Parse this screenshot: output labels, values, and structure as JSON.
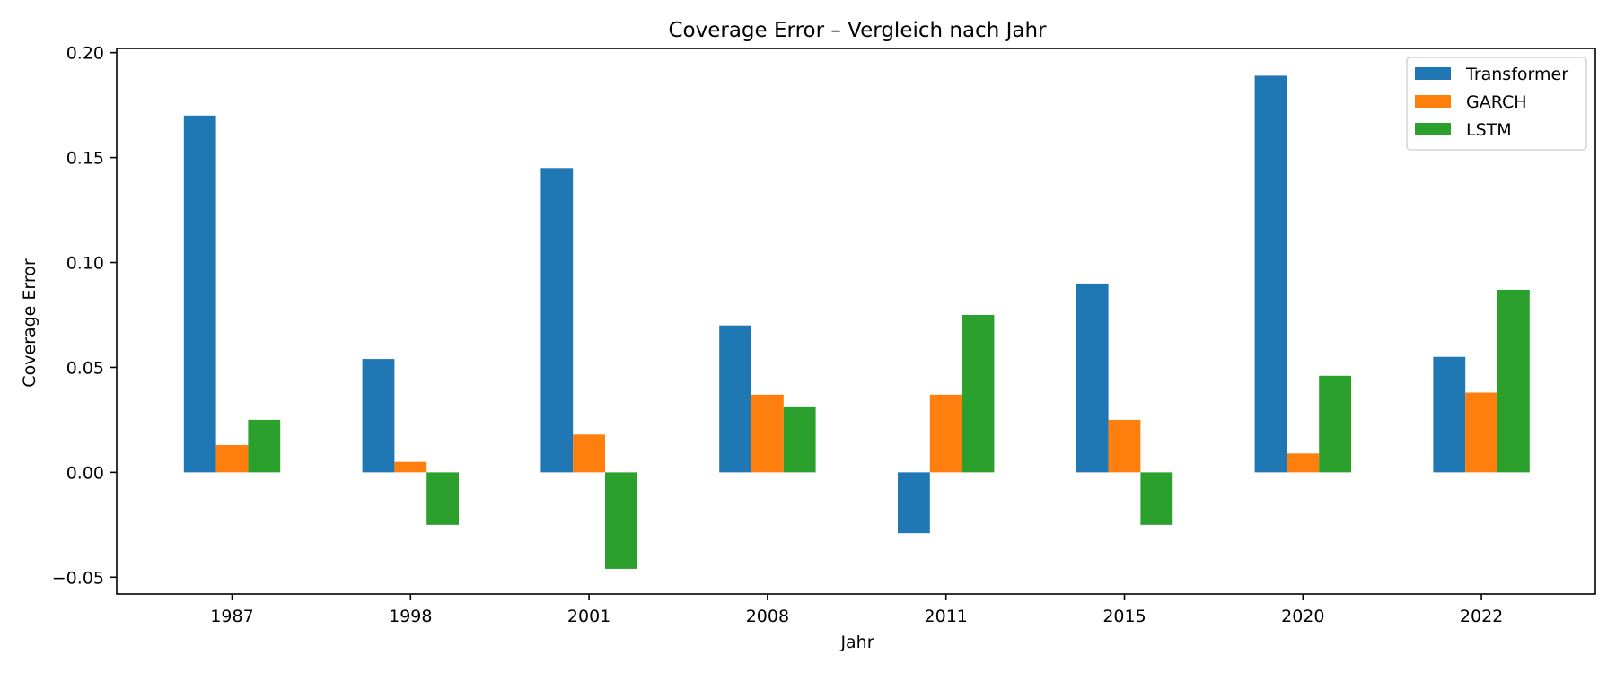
{
  "chart_data": {
    "type": "bar",
    "title": "Coverage Error – Vergleich nach Jahr",
    "xlabel": "Jahr",
    "ylabel": "Coverage Error",
    "categories": [
      "1987",
      "1998",
      "2001",
      "2008",
      "2011",
      "2015",
      "2020",
      "2022"
    ],
    "series": [
      {
        "name": "Transformer",
        "color": "#1f77b4",
        "values": [
          0.17,
          0.054,
          0.145,
          0.07,
          -0.029,
          0.09,
          0.189,
          0.055
        ]
      },
      {
        "name": "GARCH",
        "color": "#ff7f0e",
        "values": [
          0.013,
          0.005,
          0.018,
          0.037,
          0.037,
          0.025,
          0.009,
          0.038
        ]
      },
      {
        "name": "LSTM",
        "color": "#2ca02c",
        "values": [
          0.025,
          -0.025,
          -0.046,
          0.031,
          0.075,
          -0.025,
          0.046,
          0.087
        ]
      }
    ],
    "ylim": [
      -0.058,
      0.202
    ],
    "yticks": [
      -0.05,
      0.0,
      0.05,
      0.1,
      0.15,
      0.2
    ],
    "ytick_labels": [
      "−0.05",
      "0.00",
      "0.05",
      "0.10",
      "0.15",
      "0.20"
    ],
    "grid": false,
    "legend_position": "top-right"
  }
}
